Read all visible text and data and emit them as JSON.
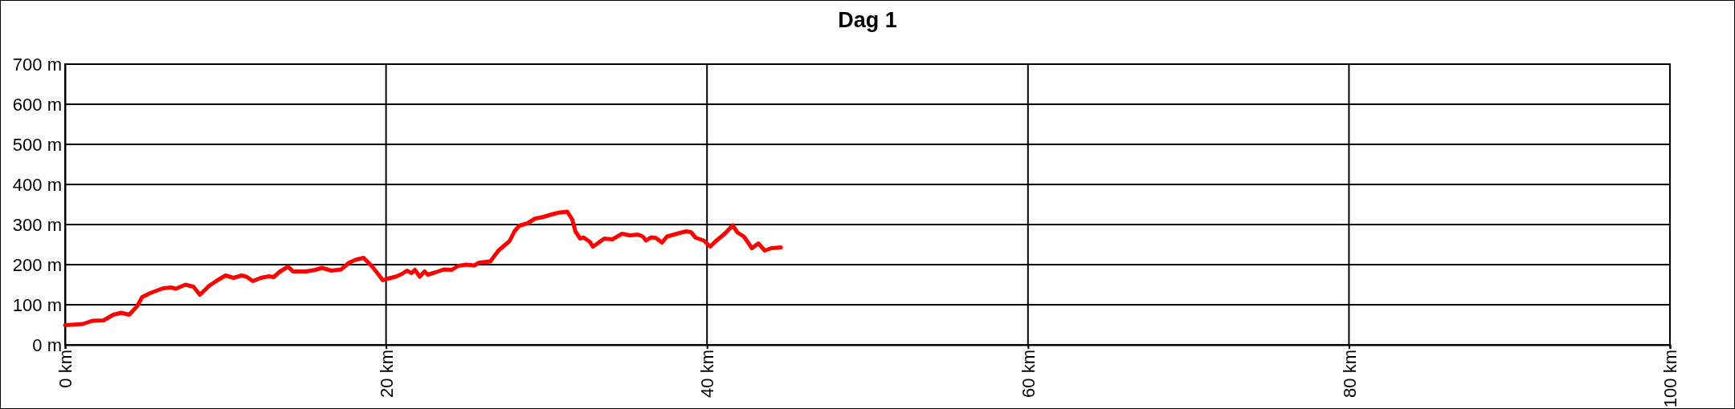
{
  "chart_data": {
    "type": "line",
    "title": "Dag 1",
    "x": [
      0,
      1.1,
      1.7,
      2.4,
      3.0,
      3.5,
      4.0,
      4.5,
      4.8,
      5.3,
      6.1,
      6.6,
      6.9,
      7.5,
      8.0,
      8.4,
      9.0,
      9.5,
      10.0,
      10.5,
      11.0,
      11.3,
      11.7,
      12.2,
      12.7,
      13.0,
      13.4,
      13.9,
      14.2,
      15.0,
      15.6,
      16.0,
      16.6,
      17.2,
      17.7,
      18.1,
      18.6,
      19.1,
      19.5,
      19.8,
      20.1,
      20.6,
      21.0,
      21.3,
      21.6,
      21.8,
      22.1,
      22.4,
      22.6,
      23.1,
      23.6,
      24.1,
      24.5,
      25.0,
      25.5,
      25.8,
      26.5,
      27.0,
      27.7,
      28.0,
      28.3,
      28.8,
      29.3,
      29.8,
      30.3,
      30.8,
      31.3,
      31.6,
      31.8,
      32.1,
      32.3,
      32.7,
      32.9,
      33.6,
      34.1,
      34.7,
      35.2,
      35.7,
      36.0,
      36.2,
      36.5,
      36.8,
      37.2,
      37.5,
      38.2,
      38.7,
      39.0,
      39.3,
      39.8,
      40.2,
      40.5,
      41.1,
      41.6,
      41.9,
      42.3,
      42.8,
      43.2,
      43.6,
      44.0,
      44.6
    ],
    "series": [
      {
        "color": "#ff0000",
        "values": [
          49,
          52,
          60,
          61,
          75,
          80,
          75,
          97,
          119,
          129,
          141,
          143,
          140,
          150,
          145,
          125,
          148,
          161,
          173,
          167,
          173,
          170,
          159,
          167,
          171,
          169,
          183,
          195,
          183,
          183,
          187,
          192,
          185,
          188,
          205,
          212,
          217,
          197,
          177,
          161,
          165,
          170,
          177,
          185,
          179,
          187,
          170,
          183,
          175,
          181,
          188,
          187,
          197,
          200,
          198,
          205,
          208,
          235,
          259,
          283,
          297,
          303,
          315,
          319,
          325,
          330,
          332,
          313,
          283,
          265,
          268,
          257,
          245,
          265,
          263,
          277,
          273,
          275,
          270,
          260,
          268,
          267,
          255,
          270,
          278,
          283,
          281,
          267,
          260,
          245,
          257,
          277,
          298,
          280,
          270,
          241,
          253,
          235,
          241,
          243
        ]
      }
    ],
    "xlim": [
      0,
      100
    ],
    "xticks": [
      {
        "value": 0,
        "label": "0 km"
      },
      {
        "value": 20,
        "label": "20 km"
      },
      {
        "value": 40,
        "label": "40 km"
      },
      {
        "value": 60,
        "label": "60 km"
      },
      {
        "value": 80,
        "label": "80 km"
      },
      {
        "value": 100,
        "label": "100 km"
      }
    ],
    "ylim": [
      0,
      700
    ],
    "yticks": [
      {
        "value": 0,
        "label": "0 m"
      },
      {
        "value": 100,
        "label": "100 m"
      },
      {
        "value": 200,
        "label": "200 m"
      },
      {
        "value": 300,
        "label": "300 m"
      },
      {
        "value": 400,
        "label": "400 m"
      },
      {
        "value": 500,
        "label": "500 m"
      },
      {
        "value": 600,
        "label": "600 m"
      },
      {
        "value": 700,
        "label": "700 m"
      }
    ],
    "grid": true,
    "line_style": "solid"
  }
}
